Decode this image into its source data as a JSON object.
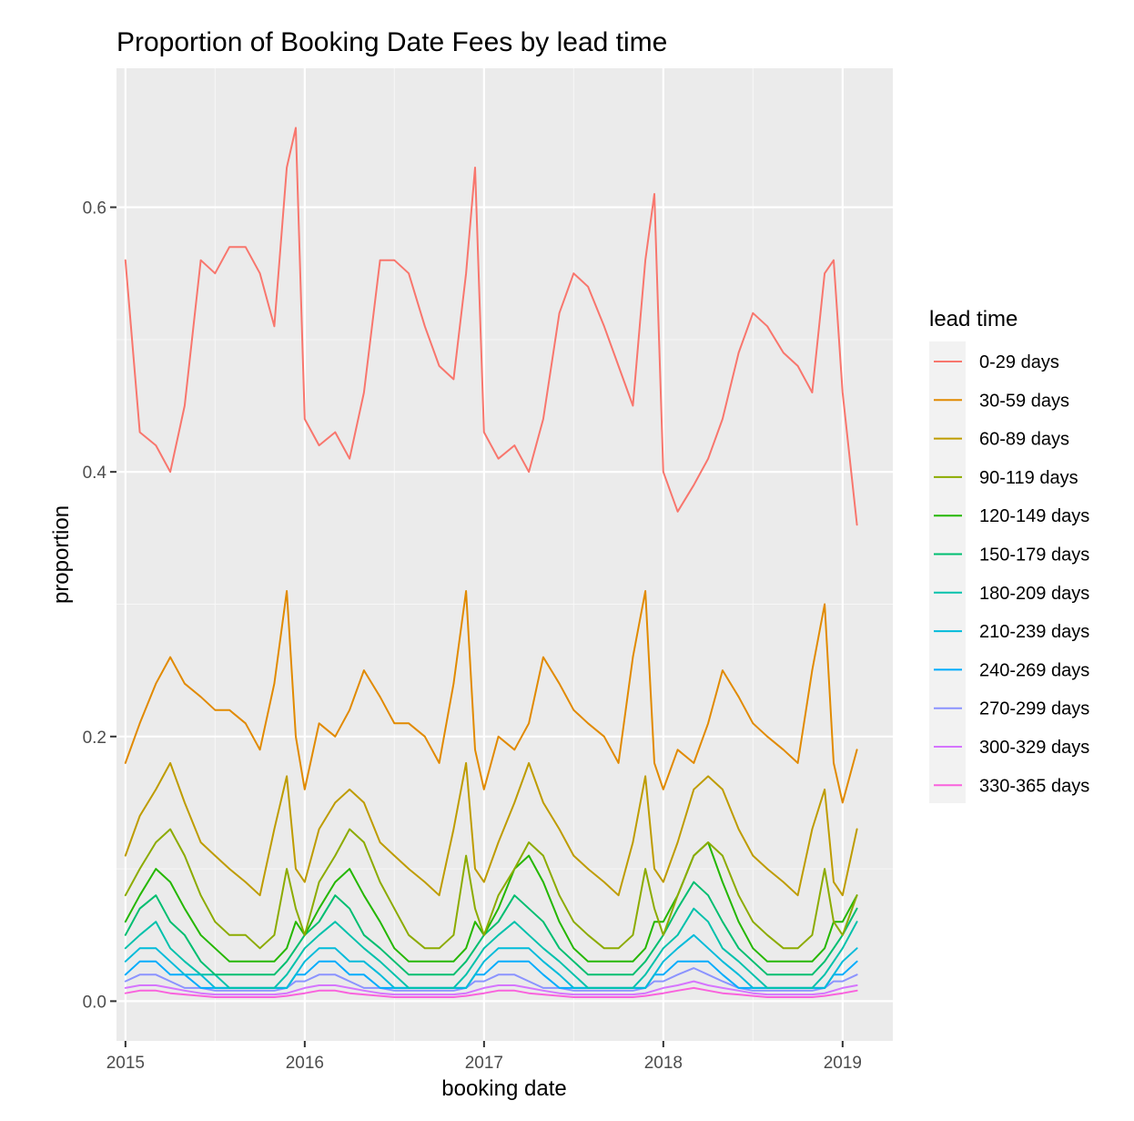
{
  "chart_data": {
    "type": "line",
    "title": "Proportion of Booking Date Fees by lead time",
    "xlabel": "booking date",
    "ylabel": "proportion",
    "x_ticks": [
      "2015",
      "2016",
      "2017",
      "2018",
      "2019"
    ],
    "y_ticks": [
      "0.0",
      "0.2",
      "0.4",
      "0.6"
    ],
    "xlim": [
      2014.95,
      2019.28
    ],
    "ylim": [
      -0.03,
      0.705
    ],
    "grid": true,
    "legend_title": "lead time",
    "legend_position": "right",
    "x": [
      2015.0,
      2015.08,
      2015.17,
      2015.25,
      2015.33,
      2015.42,
      2015.5,
      2015.58,
      2015.67,
      2015.75,
      2015.83,
      2015.9,
      2015.95,
      2016.0,
      2016.08,
      2016.17,
      2016.25,
      2016.33,
      2016.42,
      2016.5,
      2016.58,
      2016.67,
      2016.75,
      2016.83,
      2016.9,
      2016.95,
      2017.0,
      2017.08,
      2017.17,
      2017.25,
      2017.33,
      2017.42,
      2017.5,
      2017.58,
      2017.67,
      2017.75,
      2017.83,
      2017.9,
      2017.95,
      2018.0,
      2018.08,
      2018.17,
      2018.25,
      2018.33,
      2018.42,
      2018.5,
      2018.58,
      2018.67,
      2018.75,
      2018.83,
      2018.9,
      2018.95,
      2019.0,
      2019.08
    ],
    "series": [
      {
        "name": "0-29 days",
        "color": "#F8766D",
        "values": [
          0.56,
          0.43,
          0.42,
          0.4,
          0.45,
          0.56,
          0.55,
          0.57,
          0.57,
          0.55,
          0.51,
          0.63,
          0.66,
          0.44,
          0.42,
          0.43,
          0.41,
          0.46,
          0.56,
          0.56,
          0.55,
          0.51,
          0.48,
          0.47,
          0.55,
          0.63,
          0.43,
          0.41,
          0.42,
          0.4,
          0.44,
          0.52,
          0.55,
          0.54,
          0.51,
          0.48,
          0.45,
          0.56,
          0.61,
          0.4,
          0.37,
          0.39,
          0.41,
          0.44,
          0.49,
          0.52,
          0.51,
          0.49,
          0.48,
          0.46,
          0.55,
          0.56,
          0.46,
          0.36
        ]
      },
      {
        "name": "30-59 days",
        "color": "#E18A00",
        "values": [
          0.18,
          0.21,
          0.24,
          0.26,
          0.24,
          0.23,
          0.22,
          0.22,
          0.21,
          0.19,
          0.24,
          0.31,
          0.2,
          0.16,
          0.21,
          0.2,
          0.22,
          0.25,
          0.23,
          0.21,
          0.21,
          0.2,
          0.18,
          0.24,
          0.31,
          0.19,
          0.16,
          0.2,
          0.19,
          0.21,
          0.26,
          0.24,
          0.22,
          0.21,
          0.2,
          0.18,
          0.26,
          0.31,
          0.18,
          0.16,
          0.19,
          0.18,
          0.21,
          0.25,
          0.23,
          0.21,
          0.2,
          0.19,
          0.18,
          0.25,
          0.3,
          0.18,
          0.15,
          0.19
        ]
      },
      {
        "name": "60-89 days",
        "color": "#BE9C00",
        "values": [
          0.11,
          0.14,
          0.16,
          0.18,
          0.15,
          0.12,
          0.11,
          0.1,
          0.09,
          0.08,
          0.13,
          0.17,
          0.1,
          0.09,
          0.13,
          0.15,
          0.16,
          0.15,
          0.12,
          0.11,
          0.1,
          0.09,
          0.08,
          0.13,
          0.18,
          0.1,
          0.09,
          0.12,
          0.15,
          0.18,
          0.15,
          0.13,
          0.11,
          0.1,
          0.09,
          0.08,
          0.12,
          0.17,
          0.1,
          0.09,
          0.12,
          0.16,
          0.17,
          0.16,
          0.13,
          0.11,
          0.1,
          0.09,
          0.08,
          0.13,
          0.16,
          0.09,
          0.08,
          0.13
        ]
      },
      {
        "name": "90-119 days",
        "color": "#8CAB00",
        "values": [
          0.08,
          0.1,
          0.12,
          0.13,
          0.11,
          0.08,
          0.06,
          0.05,
          0.05,
          0.04,
          0.05,
          0.1,
          0.07,
          0.05,
          0.09,
          0.11,
          0.13,
          0.12,
          0.09,
          0.07,
          0.05,
          0.04,
          0.04,
          0.05,
          0.11,
          0.07,
          0.05,
          0.08,
          0.1,
          0.12,
          0.11,
          0.08,
          0.06,
          0.05,
          0.04,
          0.04,
          0.05,
          0.1,
          0.07,
          0.05,
          0.08,
          0.11,
          0.12,
          0.11,
          0.08,
          0.06,
          0.05,
          0.04,
          0.04,
          0.05,
          0.1,
          0.06,
          0.05,
          0.08
        ]
      },
      {
        "name": "120-149 days",
        "color": "#24B700",
        "values": [
          0.06,
          0.08,
          0.1,
          0.09,
          0.07,
          0.05,
          0.04,
          0.03,
          0.03,
          0.03,
          0.03,
          0.04,
          0.06,
          0.05,
          0.07,
          0.09,
          0.1,
          0.08,
          0.06,
          0.04,
          0.03,
          0.03,
          0.03,
          0.03,
          0.04,
          0.06,
          0.05,
          0.07,
          0.1,
          0.11,
          0.09,
          0.06,
          0.04,
          0.03,
          0.03,
          0.03,
          0.03,
          0.04,
          0.06,
          0.06,
          0.08,
          0.11,
          0.12,
          0.09,
          0.06,
          0.04,
          0.03,
          0.03,
          0.03,
          0.03,
          0.04,
          0.06,
          0.06,
          0.08
        ]
      },
      {
        "name": "150-179 days",
        "color": "#00BE70",
        "values": [
          0.05,
          0.07,
          0.08,
          0.06,
          0.05,
          0.03,
          0.02,
          0.02,
          0.02,
          0.02,
          0.02,
          0.03,
          0.04,
          0.05,
          0.06,
          0.08,
          0.07,
          0.05,
          0.04,
          0.03,
          0.02,
          0.02,
          0.02,
          0.02,
          0.03,
          0.04,
          0.05,
          0.06,
          0.08,
          0.07,
          0.06,
          0.04,
          0.03,
          0.02,
          0.02,
          0.02,
          0.02,
          0.03,
          0.04,
          0.05,
          0.07,
          0.09,
          0.08,
          0.06,
          0.04,
          0.03,
          0.02,
          0.02,
          0.02,
          0.02,
          0.03,
          0.04,
          0.05,
          0.07
        ]
      },
      {
        "name": "180-209 days",
        "color": "#00C1AB",
        "values": [
          0.04,
          0.05,
          0.06,
          0.04,
          0.03,
          0.02,
          0.02,
          0.01,
          0.01,
          0.01,
          0.01,
          0.02,
          0.03,
          0.04,
          0.05,
          0.06,
          0.05,
          0.04,
          0.03,
          0.02,
          0.01,
          0.01,
          0.01,
          0.01,
          0.02,
          0.03,
          0.04,
          0.05,
          0.06,
          0.05,
          0.04,
          0.03,
          0.02,
          0.01,
          0.01,
          0.01,
          0.01,
          0.02,
          0.03,
          0.04,
          0.05,
          0.07,
          0.06,
          0.04,
          0.03,
          0.02,
          0.01,
          0.01,
          0.01,
          0.01,
          0.02,
          0.03,
          0.04,
          0.06
        ]
      },
      {
        "name": "210-239 days",
        "color": "#00BBDA",
        "values": [
          0.03,
          0.04,
          0.04,
          0.03,
          0.02,
          0.02,
          0.01,
          0.01,
          0.01,
          0.01,
          0.01,
          0.01,
          0.02,
          0.03,
          0.04,
          0.04,
          0.03,
          0.03,
          0.02,
          0.01,
          0.01,
          0.01,
          0.01,
          0.01,
          0.01,
          0.02,
          0.03,
          0.04,
          0.04,
          0.04,
          0.03,
          0.02,
          0.01,
          0.01,
          0.01,
          0.01,
          0.01,
          0.01,
          0.02,
          0.03,
          0.04,
          0.05,
          0.04,
          0.03,
          0.02,
          0.01,
          0.01,
          0.01,
          0.01,
          0.01,
          0.01,
          0.02,
          0.03,
          0.04
        ]
      },
      {
        "name": "240-269 days",
        "color": "#00ACFC",
        "values": [
          0.02,
          0.03,
          0.03,
          0.02,
          0.02,
          0.01,
          0.01,
          0.01,
          0.01,
          0.01,
          0.01,
          0.01,
          0.02,
          0.02,
          0.03,
          0.03,
          0.02,
          0.02,
          0.01,
          0.01,
          0.01,
          0.01,
          0.01,
          0.01,
          0.01,
          0.02,
          0.02,
          0.03,
          0.03,
          0.03,
          0.02,
          0.01,
          0.01,
          0.01,
          0.01,
          0.01,
          0.01,
          0.01,
          0.02,
          0.02,
          0.03,
          0.03,
          0.03,
          0.02,
          0.01,
          0.01,
          0.01,
          0.01,
          0.01,
          0.01,
          0.01,
          0.02,
          0.02,
          0.03
        ]
      },
      {
        "name": "270-299 days",
        "color": "#8B93FF",
        "values": [
          0.015,
          0.02,
          0.02,
          0.015,
          0.01,
          0.01,
          0.008,
          0.008,
          0.008,
          0.008,
          0.008,
          0.01,
          0.015,
          0.015,
          0.02,
          0.02,
          0.015,
          0.01,
          0.01,
          0.008,
          0.008,
          0.008,
          0.008,
          0.008,
          0.01,
          0.015,
          0.015,
          0.02,
          0.02,
          0.015,
          0.01,
          0.01,
          0.008,
          0.008,
          0.008,
          0.008,
          0.008,
          0.01,
          0.015,
          0.015,
          0.02,
          0.025,
          0.02,
          0.015,
          0.01,
          0.008,
          0.008,
          0.008,
          0.008,
          0.008,
          0.01,
          0.015,
          0.015,
          0.02
        ]
      },
      {
        "name": "300-329 days",
        "color": "#D575FE",
        "values": [
          0.01,
          0.012,
          0.012,
          0.01,
          0.008,
          0.006,
          0.005,
          0.005,
          0.005,
          0.005,
          0.005,
          0.006,
          0.008,
          0.01,
          0.012,
          0.012,
          0.01,
          0.008,
          0.006,
          0.005,
          0.005,
          0.005,
          0.005,
          0.005,
          0.006,
          0.008,
          0.01,
          0.012,
          0.012,
          0.01,
          0.008,
          0.006,
          0.005,
          0.005,
          0.005,
          0.005,
          0.005,
          0.006,
          0.008,
          0.01,
          0.012,
          0.015,
          0.012,
          0.01,
          0.008,
          0.006,
          0.005,
          0.005,
          0.005,
          0.005,
          0.006,
          0.008,
          0.01,
          0.012
        ]
      },
      {
        "name": "330-365 days",
        "color": "#F962DD",
        "values": [
          0.006,
          0.008,
          0.008,
          0.006,
          0.005,
          0.004,
          0.003,
          0.003,
          0.003,
          0.003,
          0.003,
          0.004,
          0.005,
          0.006,
          0.008,
          0.008,
          0.006,
          0.005,
          0.004,
          0.003,
          0.003,
          0.003,
          0.003,
          0.003,
          0.004,
          0.005,
          0.006,
          0.008,
          0.008,
          0.006,
          0.005,
          0.004,
          0.003,
          0.003,
          0.003,
          0.003,
          0.003,
          0.004,
          0.005,
          0.006,
          0.008,
          0.01,
          0.008,
          0.006,
          0.005,
          0.004,
          0.003,
          0.003,
          0.003,
          0.003,
          0.004,
          0.005,
          0.006,
          0.008
        ]
      }
    ]
  }
}
